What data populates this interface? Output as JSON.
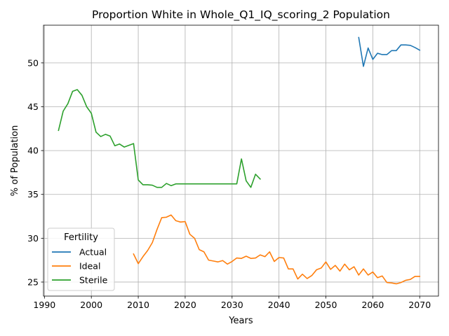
{
  "chart_data": {
    "type": "line",
    "title": "Proportion White in Whole_Q1_IQ_scoring_2 Population",
    "xlabel": "Years",
    "ylabel": "% of Population",
    "xlim": [
      1989.8,
      2074
    ],
    "ylim": [
      23.4,
      54.3
    ],
    "xticks": [
      1990,
      2000,
      2010,
      2020,
      2030,
      2040,
      2050,
      2060,
      2070
    ],
    "yticks": [
      25,
      30,
      35,
      40,
      45,
      50
    ],
    "grid": true,
    "legend": {
      "title": "Fertility",
      "position": "lower-left"
    },
    "series": [
      {
        "name": "Actual",
        "color": "#1f77b4",
        "x": [
          2057,
          2058,
          2059,
          2060,
          2061,
          2062,
          2063,
          2064,
          2065,
          2066,
          2067,
          2068,
          2069,
          2070
        ],
        "y": [
          52.9,
          49.6,
          51.7,
          50.4,
          51.1,
          50.95,
          50.95,
          51.4,
          51.4,
          52.05,
          52.05,
          52.0,
          51.75,
          51.45
        ]
      },
      {
        "name": "Ideal",
        "color": "#ff7f0e",
        "x": [
          2009,
          2010,
          2011,
          2012,
          2013,
          2014,
          2015,
          2016,
          2017,
          2018,
          2019,
          2020,
          2021,
          2022,
          2023,
          2024,
          2025,
          2026,
          2027,
          2028,
          2029,
          2030,
          2031,
          2032,
          2033,
          2034,
          2035,
          2036,
          2037,
          2038,
          2039,
          2040,
          2041,
          2042,
          2043,
          2044,
          2045,
          2046,
          2047,
          2048,
          2049,
          2050,
          2051,
          2052,
          2053,
          2054,
          2055,
          2056,
          2057,
          2058,
          2059,
          2060,
          2061,
          2062,
          2063,
          2064,
          2065,
          2066,
          2067,
          2068,
          2069,
          2070
        ],
        "y": [
          28.2,
          27.1,
          27.9,
          28.6,
          29.5,
          31.0,
          32.35,
          32.4,
          32.65,
          32.0,
          31.85,
          31.9,
          30.45,
          30.0,
          28.7,
          28.45,
          27.5,
          27.4,
          27.3,
          27.45,
          27.05,
          27.35,
          27.75,
          27.7,
          27.95,
          27.7,
          27.75,
          28.1,
          27.9,
          28.45,
          27.35,
          27.8,
          27.75,
          26.5,
          26.5,
          25.35,
          25.9,
          25.4,
          25.75,
          26.4,
          26.6,
          27.3,
          26.45,
          26.9,
          26.25,
          27.05,
          26.4,
          26.75,
          25.8,
          26.5,
          25.8,
          26.15,
          25.5,
          25.7,
          24.95,
          24.9,
          24.8,
          24.95,
          25.2,
          25.3,
          25.65,
          25.65
        ]
      },
      {
        "name": "Sterile",
        "color": "#2ca02c",
        "x": [
          1993,
          1994,
          1995,
          1996,
          1997,
          1998,
          1999,
          2000,
          2001,
          2002,
          2003,
          2004,
          2005,
          2006,
          2007,
          2008,
          2009,
          2010,
          2011,
          2012,
          2013,
          2014,
          2015,
          2016,
          2017,
          2018,
          2019,
          2020,
          2021,
          2022,
          2023,
          2024,
          2025,
          2026,
          2027,
          2028,
          2029,
          2030,
          2031,
          2032,
          2033,
          2034,
          2035,
          2036
        ],
        "y": [
          42.3,
          44.5,
          45.35,
          46.75,
          46.95,
          46.3,
          45.0,
          44.25,
          42.1,
          41.6,
          41.85,
          41.65,
          40.55,
          40.75,
          40.4,
          40.6,
          40.8,
          36.65,
          36.1,
          36.1,
          36.05,
          35.8,
          35.8,
          36.25,
          36.0,
          36.2,
          36.2,
          36.2,
          36.2,
          36.2,
          36.2,
          36.2,
          36.2,
          36.2,
          36.2,
          36.2,
          36.2,
          36.2,
          36.2,
          39.05,
          36.55,
          35.8,
          37.3,
          36.75
        ]
      }
    ]
  }
}
